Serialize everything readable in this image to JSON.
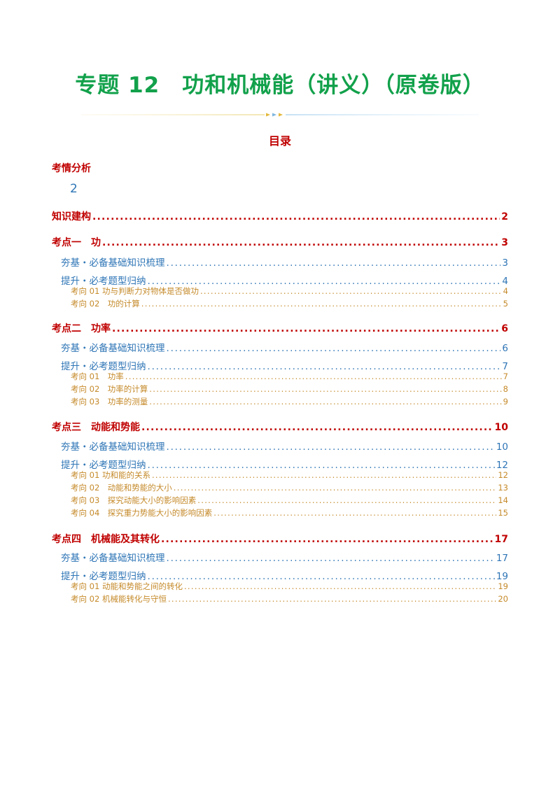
{
  "doc_title": "专题 12　功和机械能（讲义）（原卷版）",
  "toc_heading": "目录",
  "dot_leader": "........................................................................................................................................................................",
  "kaoqing": {
    "label": "考情分析",
    "page": "2"
  },
  "entries": [
    {
      "level": 1,
      "label": "知识建构",
      "page": "2"
    },
    {
      "level": 1,
      "label": "考点一　功",
      "page": "3"
    },
    {
      "level": 2,
      "label": "夯基・必备基础知识梳理",
      "page": "3"
    },
    {
      "level": 2,
      "label": "提升・必考题型归纳",
      "page": "4"
    },
    {
      "level": 3,
      "label": "考向 01  功与判断力对物体是否做功",
      "page": "4"
    },
    {
      "level": 3,
      "label": "考向 02　功的计算",
      "page": "5"
    },
    {
      "level": 1,
      "label": "考点二　功率",
      "page": "6"
    },
    {
      "level": 2,
      "label": "夯基・必备基础知识梳理",
      "page": "6"
    },
    {
      "level": 2,
      "label": "提升・必考题型归纳",
      "page": "7"
    },
    {
      "level": 3,
      "label": "考向 01　功率",
      "page": "7"
    },
    {
      "level": 3,
      "label": "考向 02　功率的计算",
      "page": "8"
    },
    {
      "level": 3,
      "label": "考向 03　功率的测量",
      "page": "9"
    },
    {
      "level": 1,
      "label": "考点三　动能和势能",
      "page": "10"
    },
    {
      "level": 2,
      "label": "夯基・必备基础知识梳理",
      "page": "10"
    },
    {
      "level": 2,
      "label": "提升・必考题型归纳",
      "page": "12"
    },
    {
      "level": 3,
      "label": "考向 01  功和能的关系",
      "page": "12"
    },
    {
      "level": 3,
      "label": "考向 02　动能和势能的大小",
      "page": "13"
    },
    {
      "level": 3,
      "label": "考向 03　探究动能大小的影响因素",
      "page": "14"
    },
    {
      "level": 3,
      "label": "考向 04　探究重力势能大小的影响因素",
      "page": "15"
    },
    {
      "level": 1,
      "label": "考点四　机械能及其转化",
      "page": "17"
    },
    {
      "level": 2,
      "label": "夯基・必备基础知识梳理",
      "page": "17"
    },
    {
      "level": 2,
      "label": "提升・必考题型归纳",
      "page": "19"
    },
    {
      "level": 3,
      "label": "考向 01  动能和势能之间的转化",
      "page": "19"
    },
    {
      "level": 3,
      "label": "考向 02  机械能转化与守恒",
      "page": "20"
    }
  ],
  "colors": {
    "title": "#12a14b",
    "level1": "#c00000",
    "level2": "#2e75b6",
    "level3": "#c58a2a"
  }
}
